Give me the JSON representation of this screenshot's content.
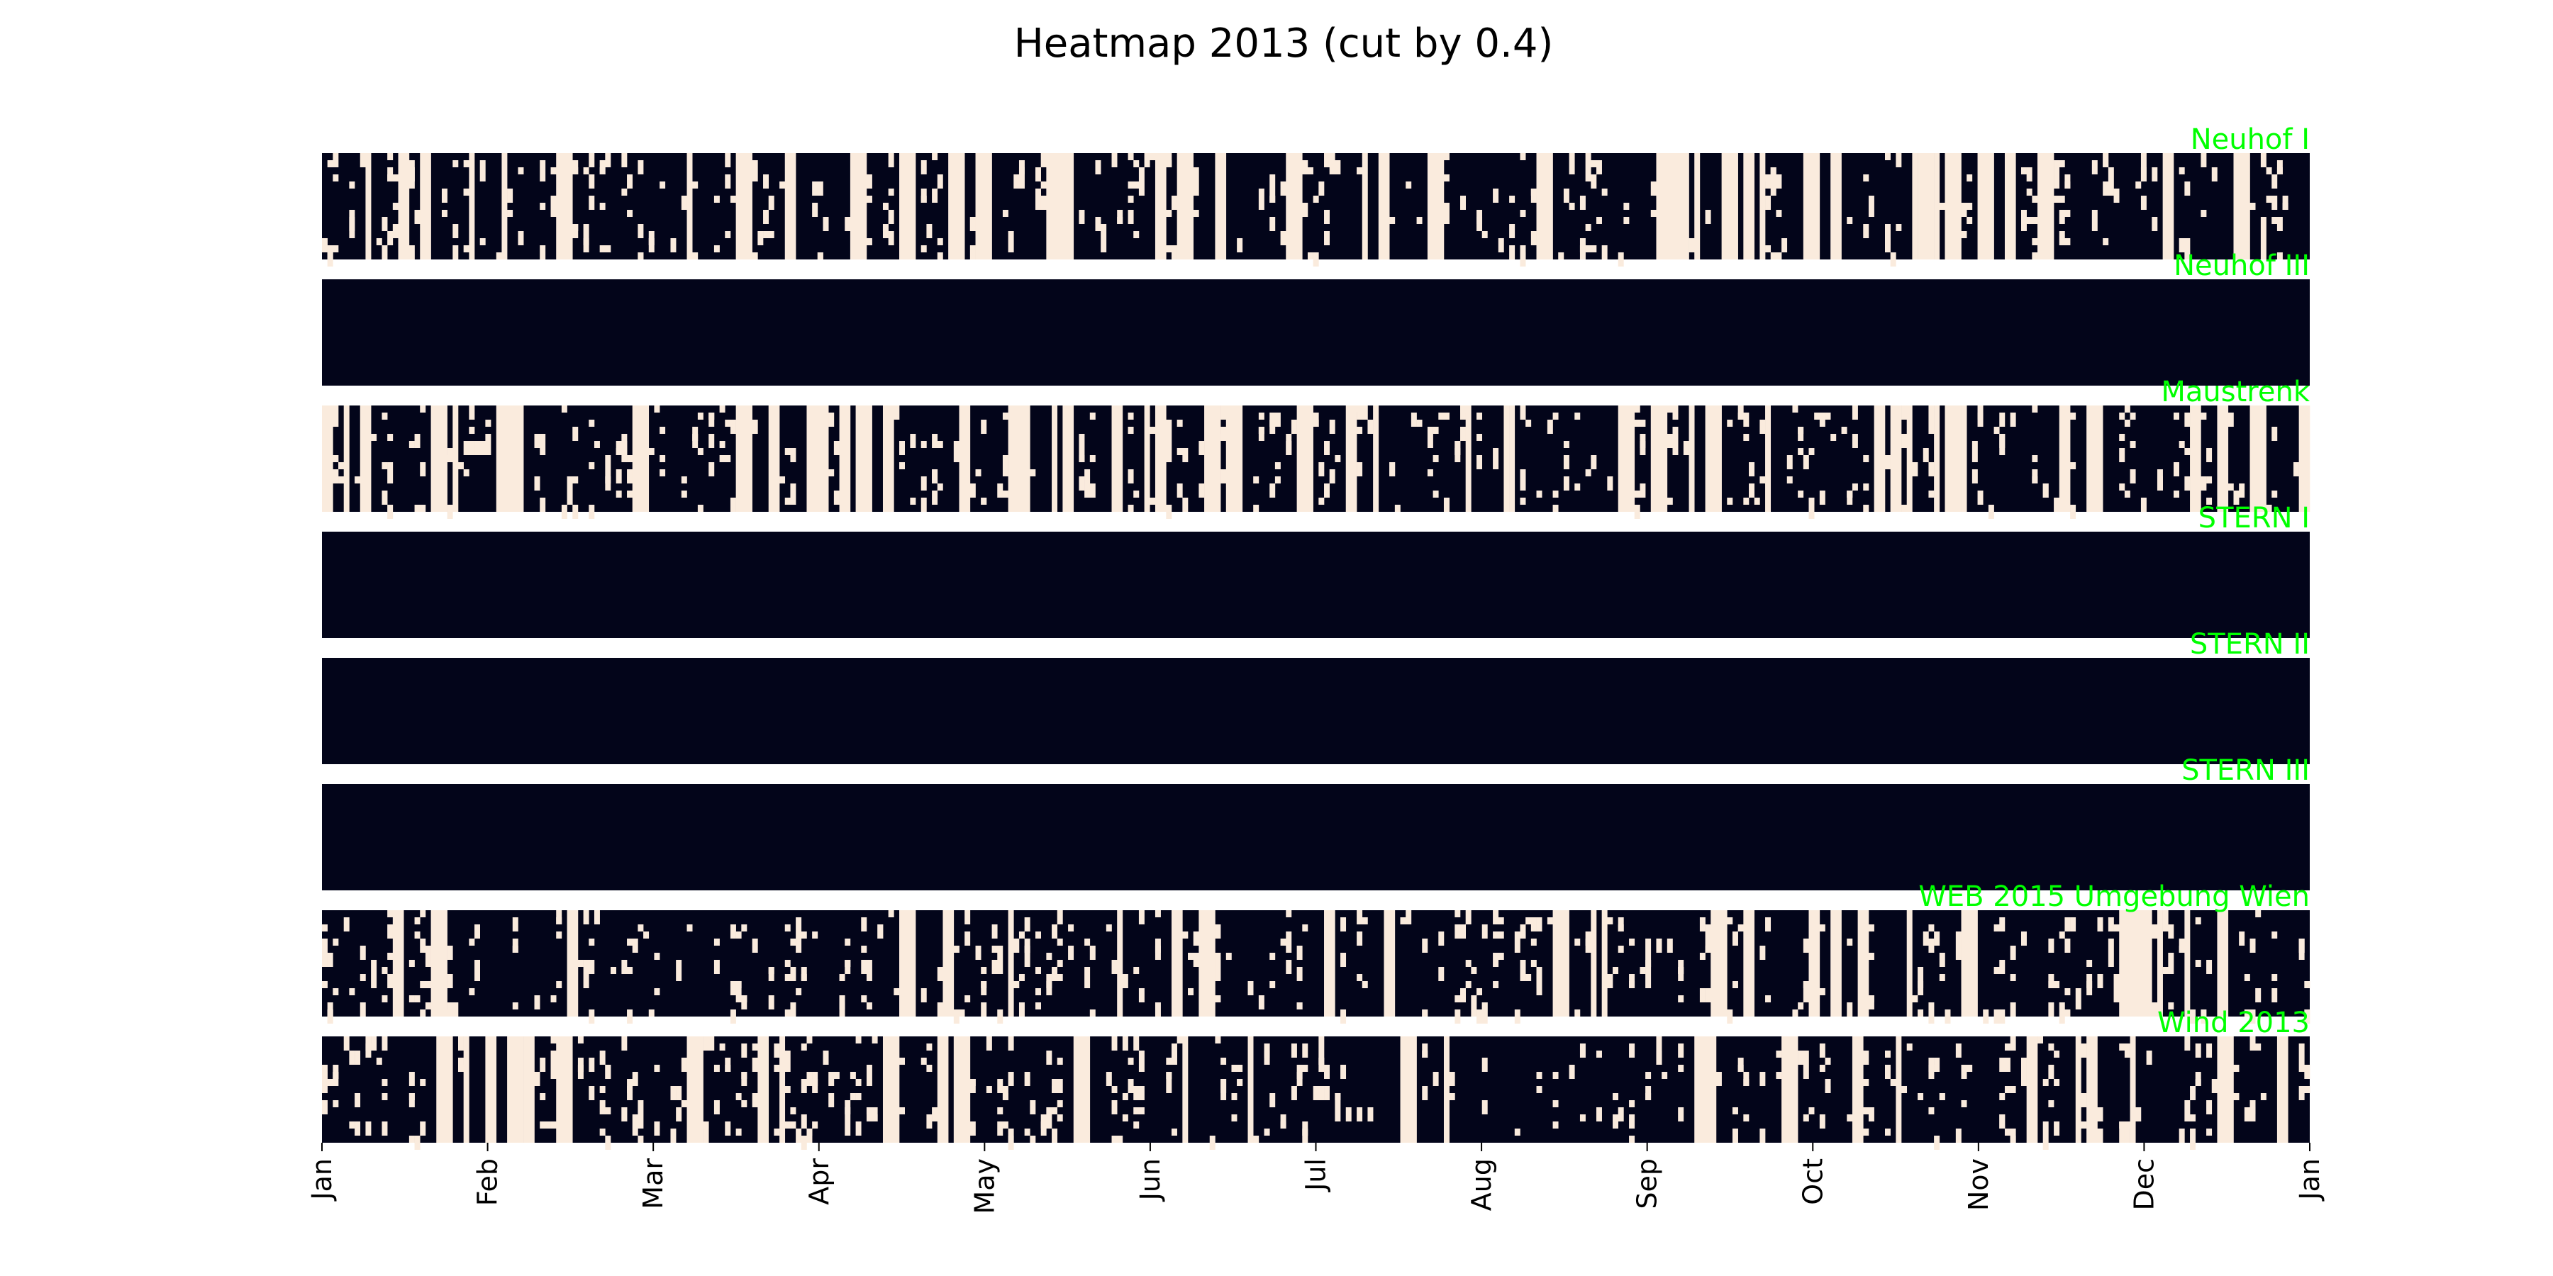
{
  "chart_data": {
    "type": "heatmap",
    "title": "Heatmap 2013 (cut by 0.4)",
    "xlabel": "",
    "ylabel": "",
    "x_ticks": [
      "Jan",
      "Feb",
      "Mar",
      "Apr",
      "May",
      "Jun",
      "Jul",
      "Aug",
      "Sep",
      "Oct",
      "Nov",
      "Dec",
      "Jan"
    ],
    "x_range": [
      "2013-01-01",
      "2014-01-01"
    ],
    "cell_values": [
      0,
      1
    ],
    "colors": {
      "high": "#03051a",
      "low": "#faebdd",
      "label": "#00ff00"
    },
    "rows": [
      {
        "name": "Neuhof I",
        "above_cut_fraction": 0.75
      },
      {
        "name": "Neuhof III",
        "above_cut_fraction": 1.0
      },
      {
        "name": "Maustrenk",
        "above_cut_fraction": 0.72
      },
      {
        "name": "STERN I",
        "above_cut_fraction": 1.0
      },
      {
        "name": "STERN II",
        "above_cut_fraction": 1.0
      },
      {
        "name": "STERN III",
        "above_cut_fraction": 1.0
      },
      {
        "name": "WEB 2015 Umgebung Wien",
        "above_cut_fraction": 0.8
      },
      {
        "name": "Wind 2013",
        "above_cut_fraction": 0.78
      }
    ],
    "grid": false,
    "legend": "none"
  }
}
